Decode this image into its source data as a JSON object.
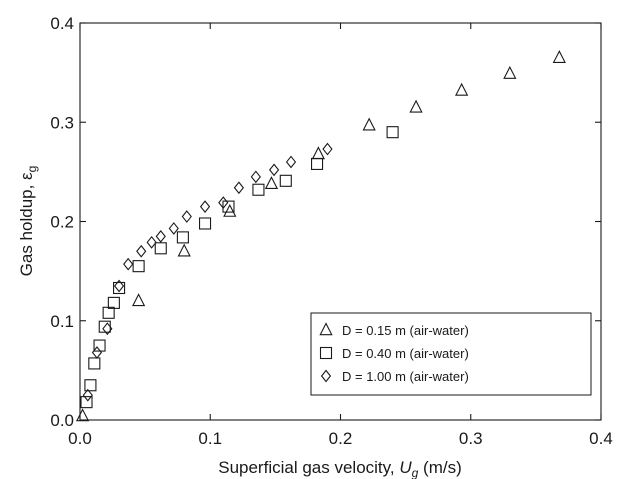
{
  "chart_data": {
    "type": "scatter",
    "title": "",
    "xlabel": {
      "main": "Superficial gas velocity, ",
      "symbol": "U",
      "subscript": "g",
      "unit": " (m/s)"
    },
    "ylabel": {
      "main": "Gas holdup, ",
      "symbol": "ε",
      "subscript": "g"
    },
    "xlim": [
      0.0,
      0.4
    ],
    "ylim": [
      0.0,
      0.4
    ],
    "xticks": [
      "0.0",
      "0.1",
      "0.2",
      "0.3",
      "0.4"
    ],
    "yticks": [
      "0.0",
      "0.1",
      "0.2",
      "0.3",
      "0.4"
    ],
    "grid": false,
    "legend_position": "bottom-right",
    "series": [
      {
        "name": "D = 0.15 m (air-water)",
        "marker": "triangle",
        "points": [
          [
            0.002,
            0.004
          ],
          [
            0.045,
            0.12
          ],
          [
            0.08,
            0.17
          ],
          [
            0.115,
            0.21
          ],
          [
            0.147,
            0.238
          ],
          [
            0.183,
            0.268
          ],
          [
            0.222,
            0.297
          ],
          [
            0.258,
            0.315
          ],
          [
            0.293,
            0.332
          ],
          [
            0.33,
            0.349
          ],
          [
            0.368,
            0.365
          ]
        ]
      },
      {
        "name": "D = 0.40 m (air-water)",
        "marker": "square",
        "points": [
          [
            0.005,
            0.018
          ],
          [
            0.008,
            0.035
          ],
          [
            0.011,
            0.057
          ],
          [
            0.015,
            0.075
          ],
          [
            0.019,
            0.094
          ],
          [
            0.022,
            0.108
          ],
          [
            0.026,
            0.118
          ],
          [
            0.03,
            0.133
          ],
          [
            0.045,
            0.155
          ],
          [
            0.062,
            0.173
          ],
          [
            0.079,
            0.184
          ],
          [
            0.096,
            0.198
          ],
          [
            0.114,
            0.215
          ],
          [
            0.137,
            0.232
          ],
          [
            0.158,
            0.241
          ],
          [
            0.182,
            0.258
          ],
          [
            0.24,
            0.29
          ]
        ]
      },
      {
        "name": "D = 1.00 m (air-water)",
        "marker": "diamond",
        "points": [
          [
            0.006,
            0.025
          ],
          [
            0.013,
            0.068
          ],
          [
            0.021,
            0.092
          ],
          [
            0.03,
            0.135
          ],
          [
            0.037,
            0.157
          ],
          [
            0.047,
            0.17
          ],
          [
            0.055,
            0.179
          ],
          [
            0.062,
            0.185
          ],
          [
            0.072,
            0.193
          ],
          [
            0.082,
            0.205
          ],
          [
            0.096,
            0.215
          ],
          [
            0.11,
            0.219
          ],
          [
            0.122,
            0.234
          ],
          [
            0.135,
            0.245
          ],
          [
            0.149,
            0.252
          ],
          [
            0.162,
            0.26
          ],
          [
            0.19,
            0.273
          ]
        ]
      }
    ]
  }
}
